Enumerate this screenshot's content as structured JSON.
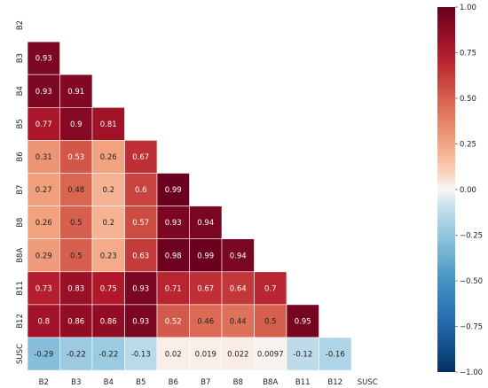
{
  "chart_data": {
    "type": "heatmap",
    "title": "",
    "xlabel": "",
    "ylabel": "",
    "mask": "lower-triangle",
    "x_labels": [
      "B2",
      "B3",
      "B4",
      "B5",
      "B6",
      "B7",
      "B8",
      "B8A",
      "B11",
      "B12",
      "SUSC"
    ],
    "y_labels": [
      "B2",
      "B3",
      "B4",
      "B5",
      "B6",
      "B7",
      "B8",
      "B8A",
      "B11",
      "B12",
      "SUSC"
    ],
    "cells": [
      [],
      [
        "0.93"
      ],
      [
        "0.93",
        "0.91"
      ],
      [
        "0.77",
        "0.9",
        "0.81"
      ],
      [
        "0.31",
        "0.53",
        "0.26",
        "0.67"
      ],
      [
        "0.27",
        "0.48",
        "0.2",
        "0.6",
        "0.99"
      ],
      [
        "0.26",
        "0.5",
        "0.2",
        "0.57",
        "0.93",
        "0.94"
      ],
      [
        "0.29",
        "0.5",
        "0.23",
        "0.63",
        "0.98",
        "0.99",
        "0.94"
      ],
      [
        "0.73",
        "0.83",
        "0.75",
        "0.93",
        "0.71",
        "0.67",
        "0.64",
        "0.7"
      ],
      [
        "0.8",
        "0.86",
        "0.86",
        "0.93",
        "0.52",
        "0.46",
        "0.44",
        "0.5",
        "0.95"
      ],
      [
        "-0.29",
        "-0.22",
        "-0.22",
        "-0.13",
        "0.02",
        "0.019",
        "0.022",
        "0.0097",
        "-0.12",
        "-0.16"
      ]
    ],
    "colorbar": {
      "range": [
        -1.0,
        1.0
      ],
      "ticks": [
        "1.00",
        "0.75",
        "0.50",
        "0.25",
        "0.00",
        "−0.25",
        "−0.50",
        "−0.75",
        "−1.00"
      ],
      "colormap": "RdBu_r"
    }
  }
}
